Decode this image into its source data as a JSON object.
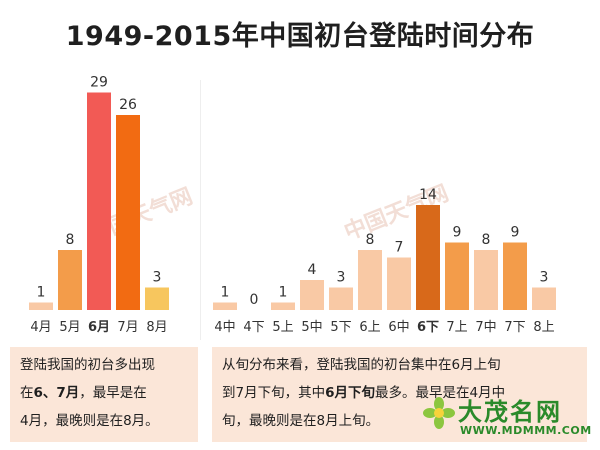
{
  "title": "1949-2015年中国初台登陆时间分布",
  "colors": {
    "light": "#f9c9a5",
    "mid": "#f39c4a",
    "red": "#f25a55",
    "orange": "#f26b12",
    "yellow": "#f7c65e",
    "dark": "#d8691a",
    "note_bg": "#fbe6d8"
  },
  "chart_data": [
    {
      "type": "bar",
      "categories": [
        "4月",
        "5月",
        "6月",
        "7月",
        "8月"
      ],
      "values": [
        1,
        8,
        29,
        26,
        3
      ],
      "bold_categories": [
        "6月"
      ],
      "bar_colors": [
        "light",
        "mid",
        "red",
        "orange",
        "yellow"
      ]
    },
    {
      "type": "bar",
      "categories": [
        "4中",
        "4下",
        "5上",
        "5中",
        "5下",
        "6上",
        "6中",
        "6下",
        "7上",
        "7中",
        "7下",
        "8上"
      ],
      "values": [
        1,
        0,
        1,
        4,
        3,
        8,
        7,
        14,
        9,
        8,
        9,
        3
      ],
      "bold_categories": [
        "6下"
      ],
      "bar_colors": [
        "light",
        "light",
        "light",
        "light",
        "light",
        "light",
        "light",
        "dark",
        "mid",
        "light",
        "mid",
        "light"
      ]
    }
  ],
  "notes": {
    "left": {
      "line1": "登陆我国的初台多出现",
      "line2_prefix": "在",
      "line2_bold": "6、7月",
      "line2_suffix": "，最早是在",
      "line3": "4月，最晚则是在8月。"
    },
    "right": {
      "line1": "从旬分布来看，登陆我国的初台集中在6月上旬",
      "line2_prefix": "到7月下旬，其中",
      "line2_bold": "6月下旬",
      "line2_suffix": "最多。最早是在4月中",
      "line3": "旬，最晚则是在8月上旬。"
    }
  },
  "watermark": "中国天气网",
  "brand": {
    "name": "大茂名网",
    "url": "WWW.MDMMM.COM"
  }
}
